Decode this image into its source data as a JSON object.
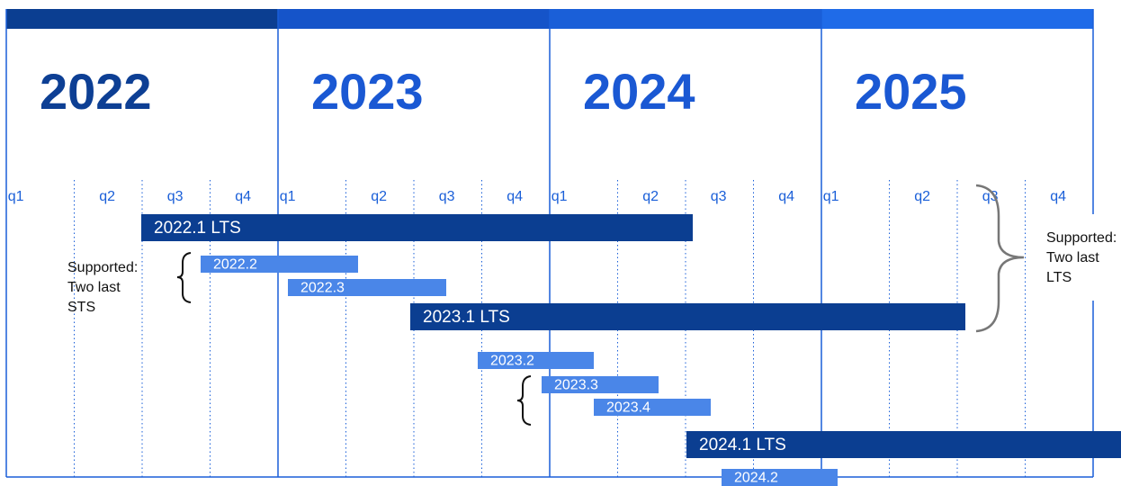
{
  "years": [
    "2022",
    "2023",
    "2024",
    "2025"
  ],
  "quarters": [
    "q1",
    "q2",
    "q3",
    "q4"
  ],
  "releases": [
    {
      "label": "2022.1 LTS"
    },
    {
      "label": "2022.2"
    },
    {
      "label": "2022.3"
    },
    {
      "label": "2023.1 LTS"
    },
    {
      "label": "2023.2"
    },
    {
      "label": "2023.3"
    },
    {
      "label": "2023.4"
    },
    {
      "label": "2024.1 LTS"
    },
    {
      "label": "2024.2"
    }
  ],
  "notes": [
    {
      "lines": [
        "Supported:",
        "Two last",
        "STS"
      ]
    },
    {
      "lines": [
        "Supported:",
        "Two last",
        "LTS"
      ]
    }
  ]
}
